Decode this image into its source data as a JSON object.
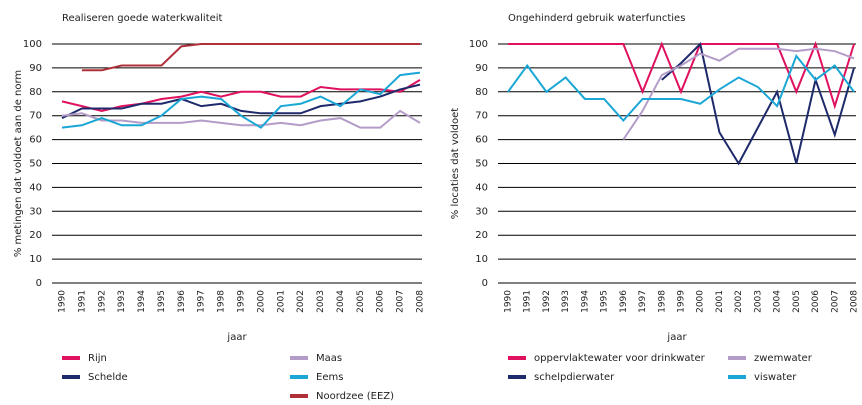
{
  "chart_data": [
    {
      "type": "line",
      "title": "Realiseren goede waterkwaliteit",
      "y_label": "% metingen dat voldoet aan de norm",
      "x_label": "jaar",
      "categories": [
        "1990",
        "1991",
        "1992",
        "1993",
        "1994",
        "1995",
        "1996",
        "1997",
        "1998",
        "1999",
        "2000",
        "2001",
        "2002",
        "2003",
        "2004",
        "2005",
        "2006",
        "2007",
        "2008"
      ],
      "ylim": [
        0,
        100
      ],
      "yticks": [
        0,
        10,
        20,
        30,
        40,
        50,
        60,
        70,
        80,
        90,
        100
      ],
      "grid": true,
      "series": [
        {
          "name": "Rijn",
          "color": "#e0115f",
          "values": [
            76,
            74,
            72,
            74,
            75,
            77,
            78,
            80,
            78,
            80,
            80,
            78,
            78,
            82,
            81,
            81,
            81,
            80,
            85
          ]
        },
        {
          "name": "Schelde",
          "color": "#1f2a6b",
          "values": [
            69,
            73,
            73,
            73,
            75,
            75,
            77,
            74,
            75,
            72,
            71,
            71,
            71,
            74,
            75,
            76,
            78,
            81,
            83
          ]
        },
        {
          "name": "Maas",
          "color": "#b49cc8",
          "values": [
            70,
            71,
            68,
            68,
            67,
            67,
            67,
            68,
            67,
            66,
            66,
            67,
            66,
            68,
            69,
            65,
            65,
            72,
            67
          ]
        },
        {
          "name": "Eems",
          "color": "#1aa7d6",
          "values": [
            65,
            66,
            69,
            66,
            66,
            70,
            77,
            78,
            77,
            70,
            65,
            74,
            75,
            78,
            74,
            81,
            79,
            87,
            88
          ]
        },
        {
          "name": "Noordzee (EEZ)",
          "color": "#b0303a",
          "values": [
            null,
            89,
            89,
            91,
            91,
            91,
            99,
            100,
            100,
            100,
            100,
            100,
            100,
            100,
            100,
            100,
            100,
            100,
            100
          ]
        }
      ]
    },
    {
      "type": "line",
      "title": "Ongehinderd gebruik waterfuncties",
      "y_label": "% locaties dat voldoet",
      "x_label": "jaar",
      "categories": [
        "1990",
        "1991",
        "1992",
        "1993",
        "1994",
        "1995",
        "1996",
        "1997",
        "1998",
        "1999",
        "2000",
        "2001",
        "2002",
        "2003",
        "2004",
        "2005",
        "2006",
        "2007",
        "2008"
      ],
      "ylim": [
        0,
        100
      ],
      "yticks": [
        0,
        10,
        20,
        30,
        40,
        50,
        60,
        70,
        80,
        90,
        100
      ],
      "grid": true,
      "series": [
        {
          "name": "oppervlaktewater voor drinkwater",
          "color": "#e0115f",
          "values": [
            100,
            100,
            100,
            100,
            100,
            100,
            100,
            80,
            100,
            80,
            100,
            100,
            100,
            100,
            100,
            80,
            100,
            74,
            100
          ]
        },
        {
          "name": "schelpdierwater",
          "color": "#1f2a6b",
          "values": [
            null,
            null,
            null,
            null,
            null,
            null,
            null,
            null,
            85,
            92,
            100,
            63,
            50,
            65,
            80,
            50,
            85,
            62,
            90
          ]
        },
        {
          "name": "zwemwater",
          "color": "#b49cc8",
          "values": [
            null,
            null,
            null,
            null,
            null,
            null,
            60,
            72,
            87,
            91,
            96,
            93,
            98,
            98,
            98,
            97,
            98,
            97,
            94
          ]
        },
        {
          "name": "viswater",
          "color": "#1aa7d6",
          "values": [
            80,
            91,
            80,
            86,
            77,
            77,
            68,
            77,
            77,
            77,
            75,
            81,
            86,
            82,
            74,
            95,
            85,
            91,
            80
          ]
        }
      ]
    }
  ]
}
